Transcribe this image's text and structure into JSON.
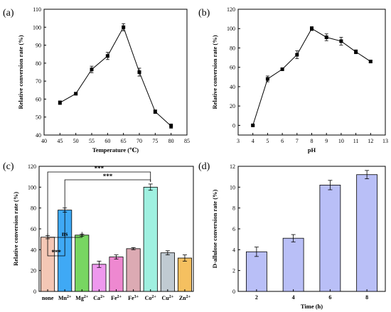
{
  "chart_data": [
    {
      "panel": "(a)",
      "type": "line",
      "xlabel": "Temperature (℃)",
      "ylabel": "Relative conversion rate (%)",
      "xlim": [
        40,
        85
      ],
      "ylim": [
        40,
        110
      ],
      "xticks": [
        40,
        45,
        50,
        55,
        60,
        65,
        70,
        75,
        80,
        85
      ],
      "yticks": [
        40,
        50,
        60,
        70,
        80,
        90,
        100,
        110
      ],
      "x": [
        45,
        50,
        55,
        60,
        65,
        70,
        75,
        80
      ],
      "y": [
        58,
        63,
        76.5,
        84,
        100,
        75,
        53,
        45
      ],
      "err": [
        1,
        0.6,
        1.8,
        2,
        2,
        2.2,
        1,
        1.2
      ],
      "color": "#000000"
    },
    {
      "panel": "(b)",
      "type": "line",
      "xlabel": "pH",
      "ylabel": "Relative conversion rate (%)",
      "xlim": [
        3,
        13
      ],
      "ylim": [
        -10,
        120
      ],
      "xticks": [
        3,
        4,
        5,
        6,
        7,
        8,
        9,
        10,
        11,
        12,
        13
      ],
      "yticks": [
        0,
        20,
        40,
        60,
        80,
        100,
        120
      ],
      "x": [
        4,
        5,
        6,
        7,
        8,
        9,
        10,
        11,
        12
      ],
      "y": [
        0,
        48,
        58,
        73,
        100,
        91,
        87,
        76,
        66
      ],
      "err": [
        0.5,
        3,
        1,
        4,
        2,
        3.5,
        4,
        2,
        1
      ],
      "color": "#000000"
    },
    {
      "panel": "(c)",
      "type": "bar",
      "ylabel": "Relative conversion rate (%)",
      "ylim": [
        0,
        120
      ],
      "yticks": [
        0,
        20,
        40,
        60,
        80,
        100,
        120
      ],
      "categories": [
        {
          "base": "none",
          "sup": ""
        },
        {
          "base": "Mn",
          "sup": "2+"
        },
        {
          "base": "Mg",
          "sup": "2+"
        },
        {
          "base": "Ca",
          "sup": "2+"
        },
        {
          "base": "Fe",
          "sup": "2+"
        },
        {
          "base": "Fe",
          "sup": "3+"
        },
        {
          "base": "Co",
          "sup": "2+"
        },
        {
          "base": "Cu",
          "sup": "2+"
        },
        {
          "base": "Zn",
          "sup": "2+"
        }
      ],
      "values": [
        52,
        78,
        54,
        26,
        33,
        41,
        100,
        37,
        32
      ],
      "err": [
        1.5,
        2,
        1,
        3,
        2,
        1,
        3,
        2,
        3
      ],
      "colors": [
        "#f4c7b5",
        "#3fa9f5",
        "#78d662",
        "#ee99ee",
        "#ee88d0",
        "#dcaab3",
        "#9ff0e0",
        "#c0cad2",
        "#f5c060"
      ],
      "annotations": [
        {
          "from": 0,
          "to": 1,
          "text": "***"
        },
        {
          "from": 0,
          "to": 2,
          "text": "ns"
        },
        {
          "from": 0,
          "to": 6,
          "text": "***"
        },
        {
          "from": 1,
          "to": 6,
          "text": "***"
        }
      ]
    },
    {
      "panel": "(d)",
      "type": "bar",
      "xlabel": "Time (h)",
      "ylabel": "D-allulose conversion rate (%)",
      "ylim": [
        0,
        12
      ],
      "yticks": [
        0,
        2,
        4,
        6,
        8,
        10,
        12
      ],
      "categories": [
        "2",
        "4",
        "6",
        "8"
      ],
      "values": [
        3.8,
        5.1,
        10.2,
        11.2
      ],
      "err": [
        0.45,
        0.35,
        0.45,
        0.4
      ],
      "color": "#b9bff7"
    }
  ]
}
